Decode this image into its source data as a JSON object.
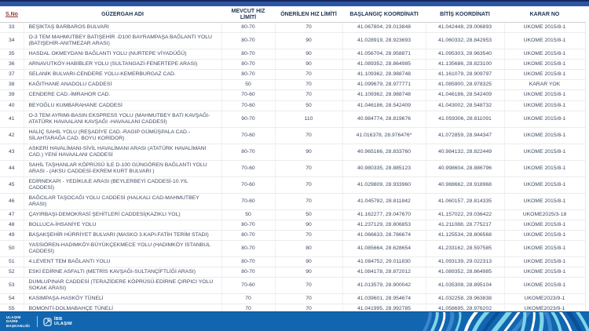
{
  "colors": {
    "top_bar_blue": "#2d55a4",
    "footer_blue": "#1266b0",
    "header_text": "#1f3250",
    "sno_header_red": "#943634",
    "body_text": "#3f4a63",
    "wave_cyan": "#7fd6e8",
    "wave_mid_blue": "#3b86cc",
    "wave_navy": "#0d4f96"
  },
  "table": {
    "headers": [
      "S.No",
      "GÜZERGAH ADI",
      "MEVCUT HIZ LİMİTİ",
      "ÖNERİLEN HIZ LİMİTİ",
      "BAŞLANGIÇ KOORDİNATI",
      "BİTİŞ KOORDİNATI",
      "KARAR NO"
    ],
    "rows": [
      [
        "33",
        "BEŞİKTAŞ BARBAROS BULVARI",
        "80-70",
        "70",
        "41.067804, 29.013848",
        "41.042448, 29.006893",
        "UKOME 2015/8-1"
      ],
      [
        "34",
        "O-3 TEM MAHMUTBEY BATIŞEHİR -D100 BAYRAMPAŞA BAĞLANTI YOLU (BATIŞEHİR-ANITMEZAR ARASI)",
        "80-70",
        "90",
        "41.028919, 28.923693",
        "41.060332, 28.842953",
        "UKOME 2015/8-1"
      ],
      [
        "35",
        "HASDAL OKMEYDANI BAĞLANTI YOLU (NURTEPE VİYADÜĞÜ)",
        "80-70",
        "90",
        "41.056704, 28.958871",
        "41.095303, 28.963540",
        "UKOME 2015/8-1"
      ],
      [
        "36",
        "ARNAVUTKÖY-HABİBLER YOLU (SULTANGAZİ-FENERTEPE ARASI)",
        "80-70",
        "90",
        "41.089352, 28.864985",
        "41.135686, 28.823100",
        "UKOME 2015/8-1"
      ],
      [
        "37",
        "SELANİK BULVARI-CENDERE YOLU-KEMERBURGAZ CAD.",
        "80-70",
        "70",
        "41.109362, 28.988748",
        "41.161079, 28.909797",
        "UKOME 2015/8-1"
      ],
      [
        "38",
        "KAĞITHANE ANADOLU CADDESİ",
        "50",
        "70",
        "41.099679, 28.977771",
        "41.085900, 28.978325",
        "KARAR YOK"
      ],
      [
        "39",
        "CENDERE CAD.-İMRAHOR CAD.",
        "70-60",
        "70",
        "41.109362, 28.988748",
        "41.046186, 28.542409",
        "UKOME 2015/8-1"
      ],
      [
        "40",
        "BEYOĞLU KUMBARAHANE CADDESİ",
        "70-60",
        "50",
        "41.046186, 28.542409",
        "41.043002, 28.548732",
        "UKOME 2015/8-1"
      ],
      [
        "41",
        "O-3 TEM AYRIMI-BASIN EKSPRESS YOLU (MAHMUTBEY BATI KAVŞAĞI-ATATÜRK HAVAALANI KAVŞAĞI -HAVAALANI CADDESİ)",
        "90-70",
        "110",
        "40.984774, 28.819676",
        "41.059306, 28.811091",
        "UKOME 2015/8-1"
      ],
      [
        "42",
        "HALİÇ SAHİL YOLU (REŞADİYE CAD.-RAGIP GÜMÜŞPALA CAD.-SİLAHTARAĞA CAD. BOYU KORİDOR)",
        "70-60",
        "70",
        "41.016378, 28.976476*",
        "41.072859, 28.944347",
        "UKOME 2015/8-1"
      ],
      [
        "43",
        "ASKERİ HAVALİMANI-SİVİL HAVALİMANI ARASI (ATATÜRK HAVALİMANI CAD.) YENİ HAVAALANI CADDESİ",
        "80-70",
        "90",
        "40.965166, 28.833760",
        "40.984132, 28.822449",
        "UKOME 2015/8-1"
      ],
      [
        "44",
        "SAHİL TAŞHANLAR KÖPRÜSÜ İLE D-100 GÜNGÖREN BAĞLANTI YOLU ARASI - (AKSU CADDESİ-EKREM KURT BULVARI )",
        "70-60",
        "70",
        "40.980335, 28.885123",
        "40.998604, 28.886796",
        "UKOME 2015/8-1"
      ],
      [
        "45",
        "EDİRNEKAPI - YEDİKULE ARASI (BEYLERBEYİ CADDESİ-10.YIL CADDESİ)",
        "70-60",
        "70",
        "41.029809, 28.933960",
        "40.988662, 28.918968",
        "UKOME 2015/8-1"
      ],
      [
        "46",
        "BAĞCILAR TAŞOCAĞI YOLU CADDESİ (HALKALI CAD-MAHMUTBEY ARASI)",
        "70-60",
        "70",
        "41.045782, 28.811842",
        "41.060157, 28.814335",
        "UKOME 2015/8-1"
      ],
      [
        "47",
        "ÇAYIRBAŞI-DEMOKRASİ ŞEHİTLERİ CADDESİ(KAZIKLI YOL)",
        "50",
        "50",
        "41.162277, 29.047670",
        "41.157022, 29.036422",
        "UKOME2025/3-18"
      ],
      [
        "48",
        "BOLLUCA-İHSANİYE YOLU",
        "80-70",
        "90",
        "41.237129, 28.806853",
        "41.211088, 28.775217",
        "UKOME 2015/8-1"
      ],
      [
        "49",
        "BAŞAKŞEHİR HÜRRİYET BULVARI (MASKO 3.KAPI-FATİH TERİM STADI)",
        "80-70",
        "70",
        "41.066633, 28.786674",
        "41.125534, 28.806568",
        "UKOME 2015/8-1"
      ],
      [
        "50",
        "YASSIÖREN-HADIMKÖY-BÜYÜKÇEKMECE YOLU (HADIMKÖY İSTANBUL CADDESİ)",
        "80-70",
        "80",
        "41.085664, 28.628654",
        "41.233162, 28.597585",
        "UKOME 2015/8-1"
      ],
      [
        "51",
        "4.LEVENT TEM BAĞLANTI YOLU",
        "80-70",
        "90",
        "41.084752, 29.011830",
        "41.093139, 29.022313",
        "UKOME 2015/8-1"
      ],
      [
        "52",
        "ESKİ EDİRNE ASFALTI (METRİS KAVŞAĞI-SULTANÇİFTLİĞİ ARASI)",
        "80-70",
        "90",
        "41.084178, 28.872012",
        "41.089352, 28.864985",
        "UKOME 2015/8-1"
      ],
      [
        "53",
        "DUMLUPINAR CADDESİ  (TERAZİDERE KÖPRÜSÜ-EDİRNE ÇIRPICI YOLU SOKAK ARASI)",
        "70-60",
        "70",
        "41.013579, 28.900042",
        "41.035308, 28.895104",
        "UKOME 2015/8-1"
      ],
      [
        "54",
        "KASIMPAŞA-HASKÖY TÜNELİ",
        "70",
        "70",
        "41.039601, 28.954674",
        "41.032258, 28.963838",
        "UKOME2023/9-1"
      ],
      [
        "55",
        "BOMONTİ-DOLMABAHÇE TÜNELİ",
        "70",
        "70",
        "41.041995, 28.992785",
        "41.058695, 28.976202",
        "UKOME2023/9-1"
      ],
      [
        "56",
        "KAĞITHANE-(BOMONTİ)PİYALEPAŞA TÜNELİ",
        "70",
        "70",
        "41.054322, 28.969582",
        "41.063408, 28.954717",
        "UKOME2023/9-1"
      ]
    ]
  },
  "footer": {
    "small": [
      "ULAŞIM",
      "DAİRE",
      "BAŞKANLIĞI"
    ],
    "main": [
      "İBB",
      "ULAŞIM"
    ]
  }
}
